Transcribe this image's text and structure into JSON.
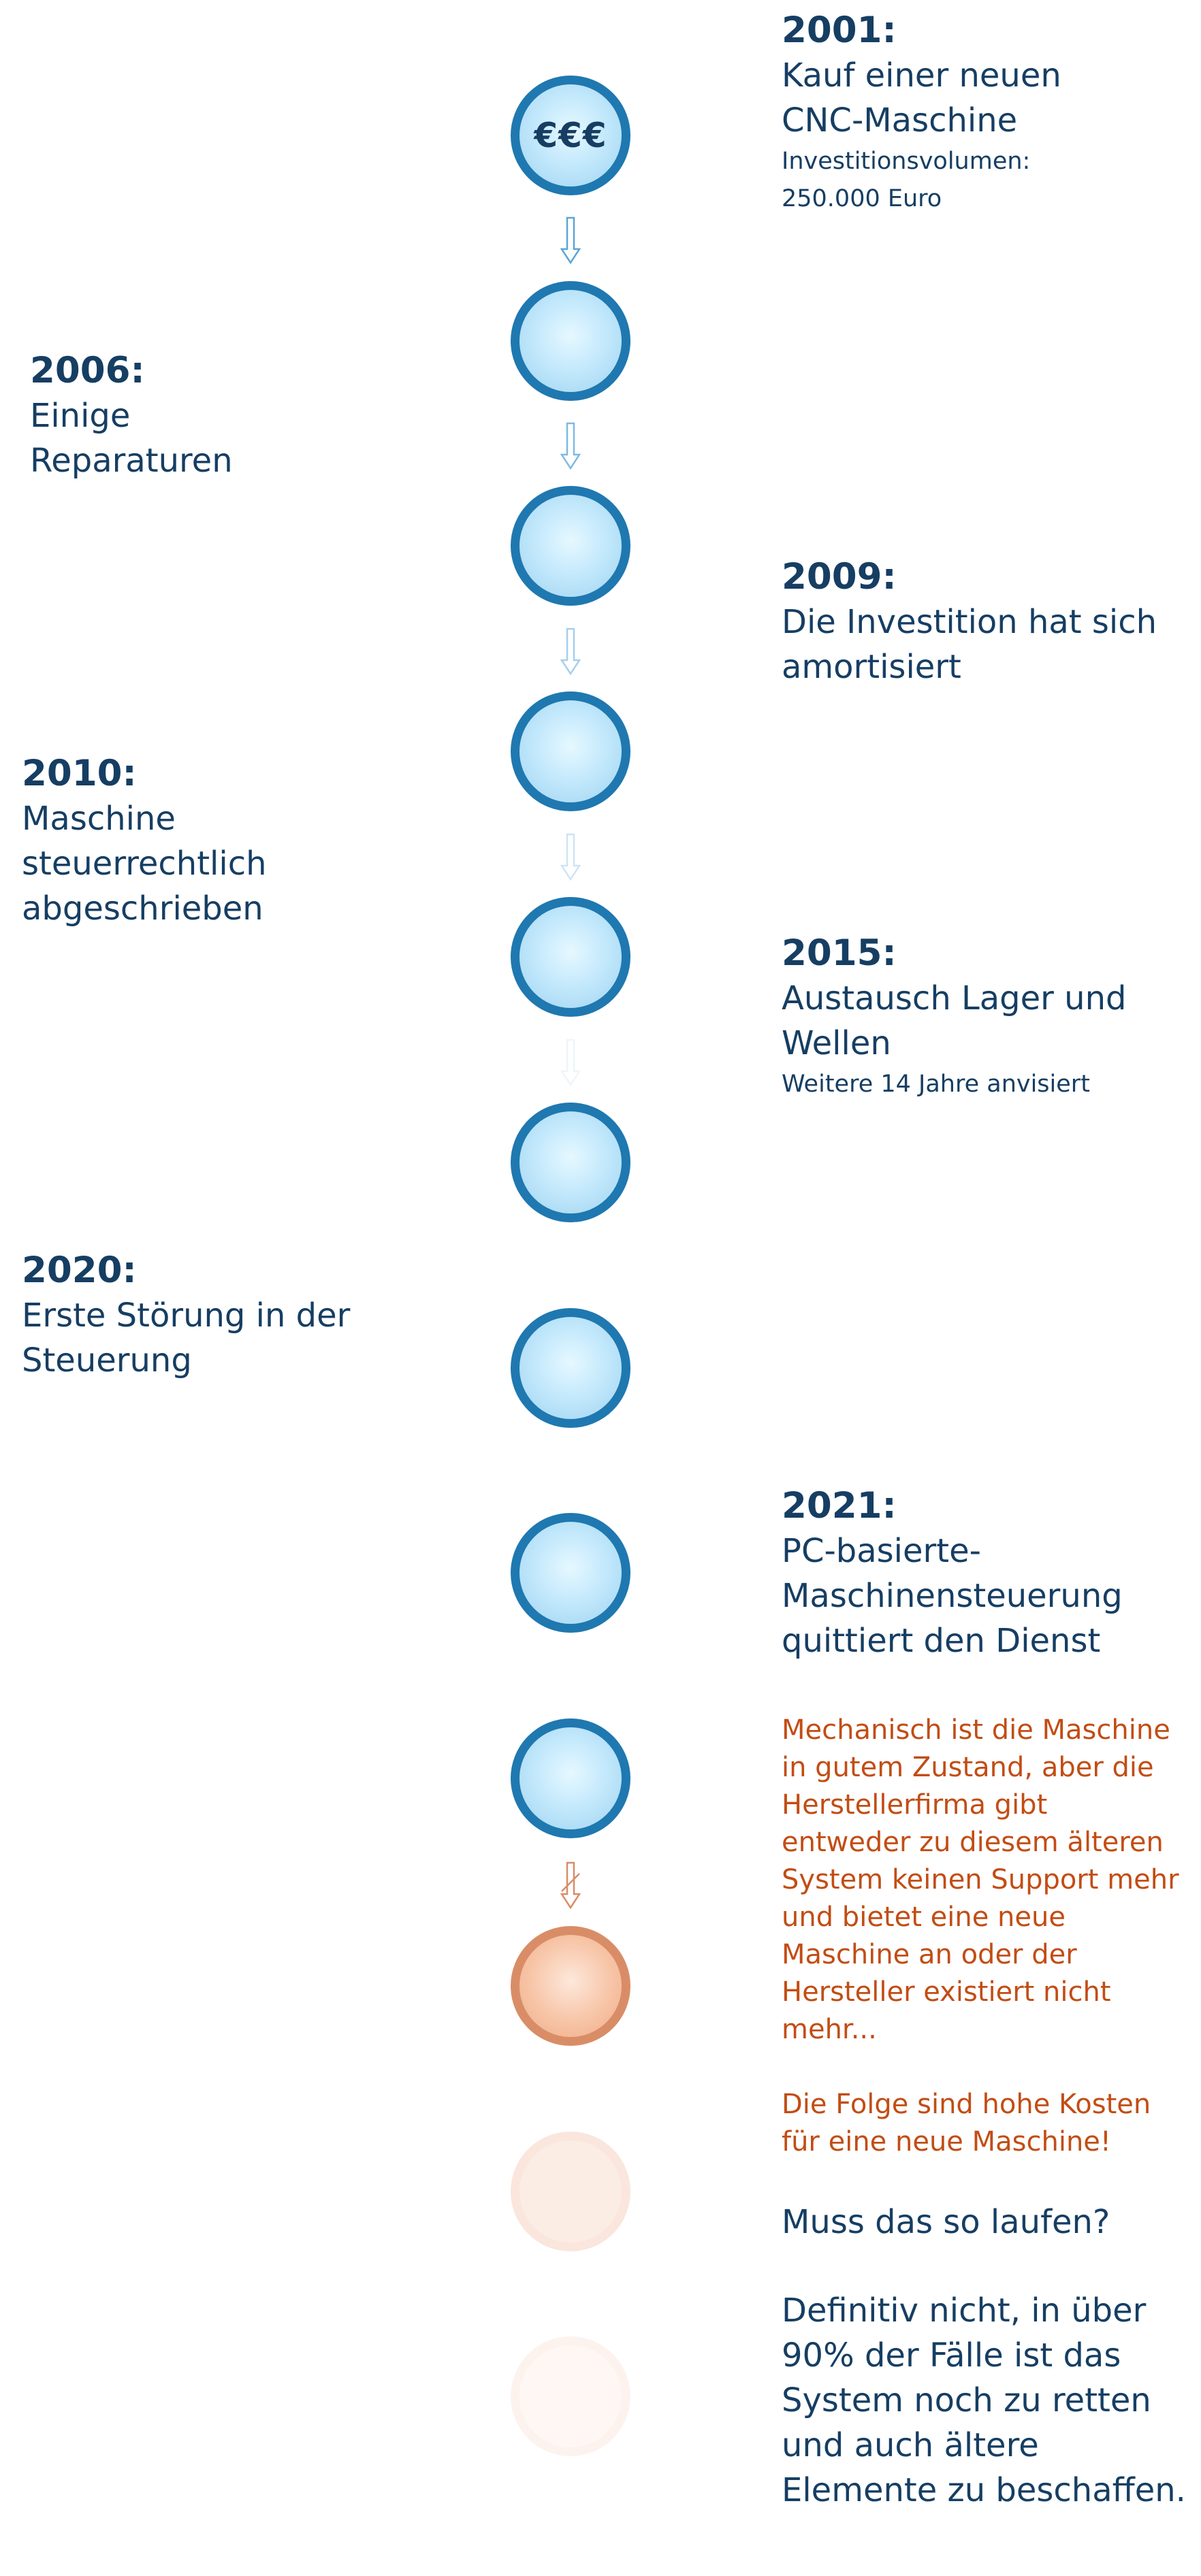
{
  "circles": [
    {
      "label": "€€€",
      "style": "blue"
    },
    {
      "label": "",
      "style": "blue"
    },
    {
      "label": "",
      "style": "blue"
    },
    {
      "label": "",
      "style": "blue"
    },
    {
      "label": "",
      "style": "blue"
    },
    {
      "label": "",
      "style": "blue"
    },
    {
      "label": "",
      "style": "blue"
    },
    {
      "label": "",
      "style": "blue"
    },
    {
      "label": "",
      "style": "blue"
    },
    {
      "label": "",
      "style": "orange"
    },
    {
      "label": "",
      "style": "faded-orange"
    },
    {
      "label": "",
      "style": "faint-orange"
    }
  ],
  "colors": {
    "navy_text": "#163e63",
    "circle_border": "#1f78b0",
    "circle_fill": "#c4e9fc",
    "orange_text": "#c24d14",
    "orange_border": "#d98d67"
  },
  "events": {
    "e2001": {
      "year": "2001:",
      "title": "Kauf einer neuen CNC-Maschine",
      "detail": "Investitionsvolumen: 250.000 Euro"
    },
    "e2006": {
      "year": "2006:",
      "title": "Einige Reparaturen"
    },
    "e2009": {
      "year": "2009:",
      "title": "Die Investition hat sich amortisiert"
    },
    "e2010": {
      "year": "2010:",
      "title": "Maschine steuerrechtlich abgeschrieben"
    },
    "e2015": {
      "year": "2015:",
      "title": "Austausch Lager und Wellen",
      "detail": "Weitere 14 Jahre anvisiert"
    },
    "e2020": {
      "year": "2020:",
      "title": "Erste Störung in der Steuerung"
    },
    "e2021": {
      "year": "2021:",
      "title": "PC-basierte-Maschinensteuerung quittiert den Dienst"
    }
  },
  "warning": {
    "paragraph1": "Mechanisch ist die Maschine in gutem Zustand, aber die Herstellerfirma gibt entweder zu diesem älteren System keinen Support mehr und bietet eine neue Maschine an oder der Hersteller existiert nicht mehr...",
    "paragraph2": "Die Folge sind hohe Kosten für eine neue Maschine!"
  },
  "conclusion": {
    "question": "Muss das so laufen?",
    "answer": "Definitiv nicht, in über 90% der Fälle ist das System noch zu retten und auch ältere Elemente zu beschaffen."
  }
}
